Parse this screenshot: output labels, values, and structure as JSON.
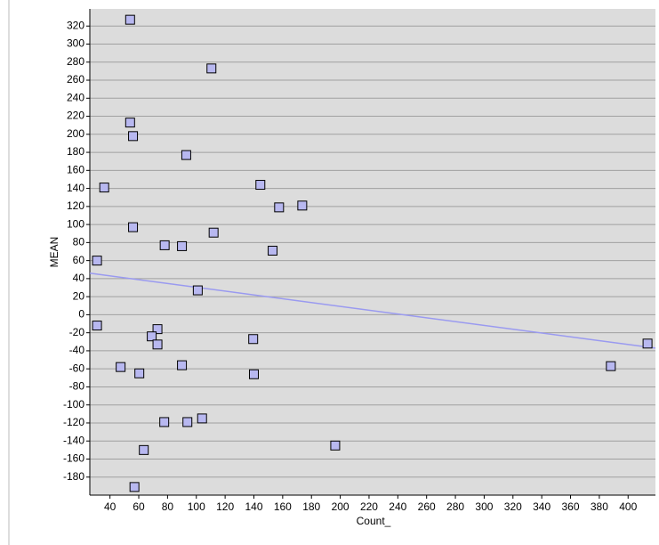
{
  "chart_data": {
    "type": "scatter",
    "x_label": "Count_",
    "y_label": "MEAN",
    "series": [
      {
        "name": "MEAN",
        "color": "#b8b8f0",
        "x": [
          54,
          110.5,
          54,
          56,
          93,
          36,
          144.5,
          157.5,
          173.6,
          56,
          112,
          78,
          90,
          153,
          31,
          101,
          31,
          73,
          69,
          73,
          139.5,
          413.5,
          47.4,
          90,
          60.4,
          140,
          388,
          77.7,
          93.8,
          104,
          196.5,
          63.5,
          57
        ],
        "values": [
          327,
          273,
          213,
          198,
          177,
          141,
          144,
          119,
          121,
          97,
          91,
          77,
          76,
          71,
          60,
          27,
          -12,
          -16,
          -24,
          -33,
          -27,
          -32,
          -58,
          -56,
          -65,
          -66,
          -57,
          -119,
          -119,
          -115,
          -145,
          -150,
          -191
        ]
      }
    ],
    "trendline": {
      "color": "#9a9af0",
      "x": [
        26,
        419
      ],
      "y": [
        46,
        -37
      ]
    },
    "xlim": [
      26,
      419
    ],
    "ylim": [
      -200,
      339
    ],
    "xticks": [
      40,
      60,
      80,
      100,
      120,
      140,
      160,
      180,
      200,
      220,
      240,
      260,
      280,
      300,
      320,
      340,
      360,
      380,
      400
    ],
    "yticks": [
      -180,
      -160,
      -140,
      -120,
      -100,
      -80,
      -60,
      -40,
      -20,
      0,
      20,
      40,
      60,
      80,
      100,
      120,
      140,
      160,
      180,
      200,
      220,
      240,
      260,
      280,
      300,
      320
    ],
    "grid": true
  }
}
